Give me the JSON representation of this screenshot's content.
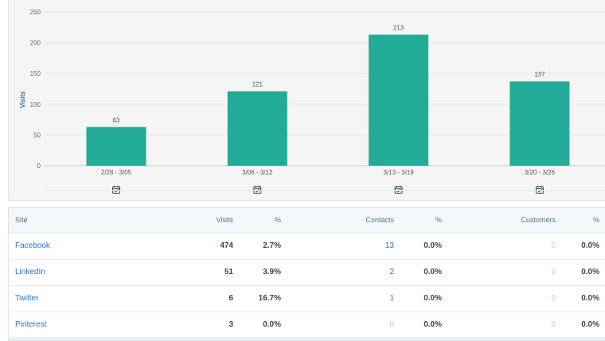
{
  "chart_data": {
    "type": "bar",
    "ylabel": "Visits",
    "ylim": [
      0,
      250
    ],
    "yticks": [
      "0",
      "50",
      "100",
      "150",
      "200",
      "250"
    ],
    "categories": [
      "2/28 - 3/05",
      "3/06 - 3/12",
      "3/13 - 3/19",
      "3/20 - 3/26"
    ],
    "values": [
      63,
      121,
      213,
      137
    ],
    "data_labels": [
      "63",
      "121",
      "213",
      "137"
    ],
    "bar_color": "#22ab96",
    "grid": true,
    "category_icon": "calendar-check-icon"
  },
  "table": {
    "headers": {
      "site": "Site",
      "visits": "Visits",
      "visits_pct": "%",
      "contacts": "Contacts",
      "contacts_pct": "%",
      "customers": "Customers",
      "customers_pct": "%"
    },
    "rows": [
      {
        "site": "Facebook",
        "visits": "474",
        "visits_pct": "2.7%",
        "contacts": "13",
        "contacts_pct": "0.0%",
        "customers": "0",
        "customers_pct": "0.0%"
      },
      {
        "site": "LinkedIn",
        "visits": "51",
        "visits_pct": "3.9%",
        "contacts": "2",
        "contacts_pct": "0.0%",
        "customers": "0",
        "customers_pct": "0.0%"
      },
      {
        "site": "Twitter",
        "visits": "6",
        "visits_pct": "16.7%",
        "contacts": "1",
        "contacts_pct": "0.0%",
        "customers": "0",
        "customers_pct": "0.0%"
      },
      {
        "site": "Pinterest",
        "visits": "3",
        "visits_pct": "0.0%",
        "contacts": "0",
        "contacts_pct": "0.0%",
        "customers": "0",
        "customers_pct": "0.0%"
      }
    ]
  },
  "colors": {
    "link": "#2f6fd1",
    "muted": "#c3cbd4",
    "text": "#33475b"
  }
}
